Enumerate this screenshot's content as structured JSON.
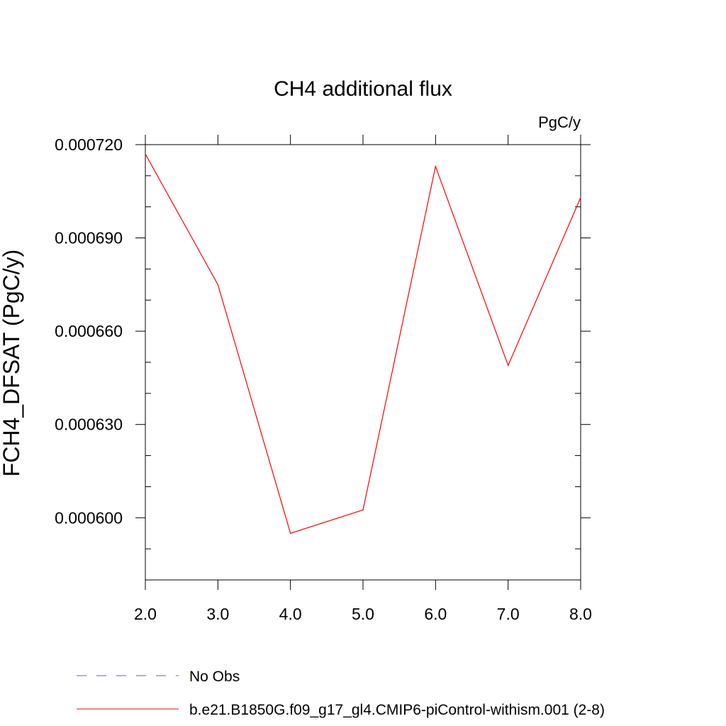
{
  "chart_data": {
    "type": "line",
    "title": "CH4 additional flux",
    "units_label": "PgC/y",
    "ylabel": "FCH4_DFSAT  (PgC/y)",
    "xlabel": "",
    "xlim": [
      2.0,
      8.0
    ],
    "ylim": [
      0.00058,
      0.00072
    ],
    "x_ticks": [
      2.0,
      3.0,
      4.0,
      5.0,
      6.0,
      7.0,
      8.0
    ],
    "x_tick_labels": [
      "2.0",
      "3.0",
      "4.0",
      "5.0",
      "6.0",
      "7.0",
      "8.0"
    ],
    "y_ticks": [
      0.0006,
      0.00063,
      0.00066,
      0.00069,
      0.00072
    ],
    "y_tick_labels": [
      "0.000600",
      "0.000630",
      "0.000660",
      "0.000690",
      "0.000720"
    ],
    "y_minor_step": 1e-05,
    "grid": false,
    "legend_position": "bottom",
    "series": [
      {
        "name": "b.e21.B1850G.f09_g17_gl4.CMIP6-piControl-withism.001 (2-8)",
        "color": "#ff0000",
        "dash": "solid",
        "x": [
          2,
          3,
          4,
          5,
          6,
          7,
          8
        ],
        "values": [
          0.000717,
          0.000675,
          0.000595,
          0.0006025,
          0.000713,
          0.000649,
          0.000703
        ]
      }
    ],
    "legend": [
      {
        "label": "No Obs",
        "color": "#6a5acd",
        "dash": "dashed"
      },
      {
        "label": "b.e21.B1850G.f09_g17_gl4.CMIP6-piControl-withism.001 (2-8)",
        "color": "#ff0000",
        "dash": "solid"
      }
    ]
  }
}
